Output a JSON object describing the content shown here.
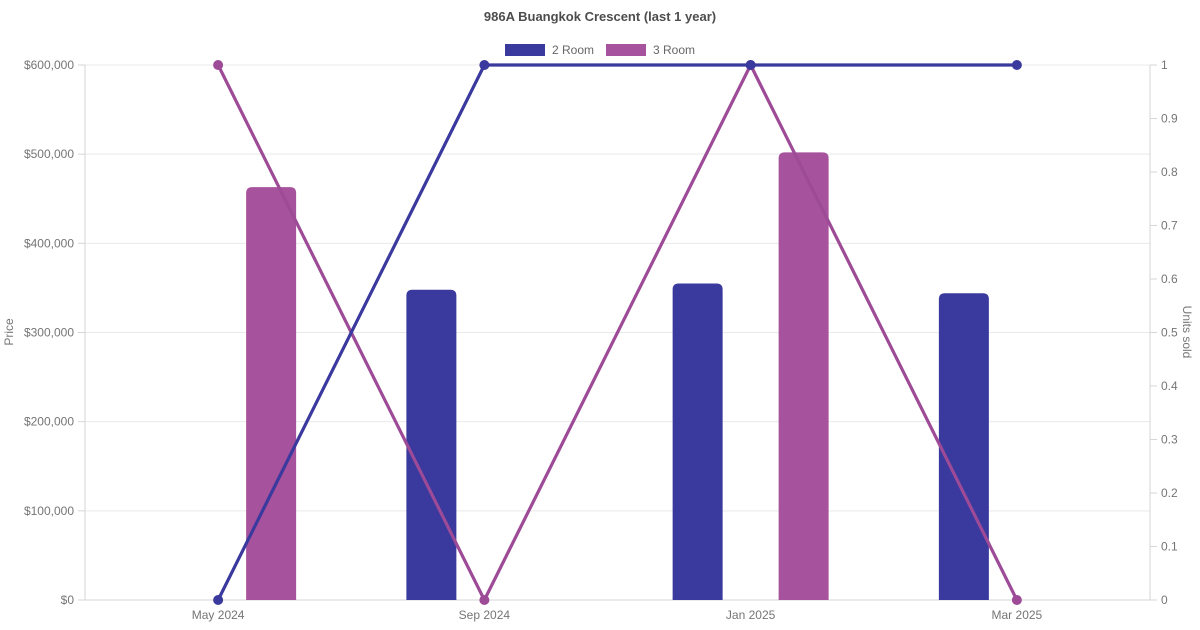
{
  "chart_data": {
    "type": "combo-bar-line",
    "title": "986A Buangkok Crescent (last 1 year)",
    "categories": [
      "May 2024",
      "Sep 2024",
      "Jan 2025",
      "Mar 2025"
    ],
    "left_axis": {
      "label": "Price",
      "min": 0,
      "max": 600000,
      "step": 100000,
      "format": "usd",
      "tick_labels": [
        "$0",
        "$100,000",
        "$200,000",
        "$300,000",
        "$400,000",
        "$500,000",
        "$600,000"
      ]
    },
    "right_axis": {
      "label": "Units sold",
      "min": 0,
      "max": 1,
      "step": 0.1,
      "tick_labels": [
        "0",
        "0.1",
        "0.2",
        "0.3",
        "0.4",
        "0.5",
        "0.6",
        "0.7",
        "0.8",
        "0.9",
        "1"
      ]
    },
    "bar_series": [
      {
        "name": "2 Room",
        "color": "#3A399E",
        "axis": "left",
        "values": [
          null,
          348000,
          355000,
          344000
        ]
      },
      {
        "name": "3 Room",
        "color": "#A7529C",
        "axis": "left",
        "values": [
          463000,
          null,
          502000,
          null
        ]
      }
    ],
    "line_series": [
      {
        "name": "2 Room",
        "color": "#3A399E",
        "axis": "right",
        "values": [
          0,
          1,
          1,
          1
        ]
      },
      {
        "name": "3 Room",
        "color": "#9D4B97",
        "axis": "right",
        "values": [
          1,
          0,
          1,
          0
        ]
      }
    ],
    "grid": "horizontal",
    "legend_position": "top",
    "colors": {
      "grid": "#e9e9e9",
      "axis": "#d6d6d6",
      "tick_label": "#757575",
      "title": "#4d4d4d",
      "legend_text": "#666666"
    }
  }
}
